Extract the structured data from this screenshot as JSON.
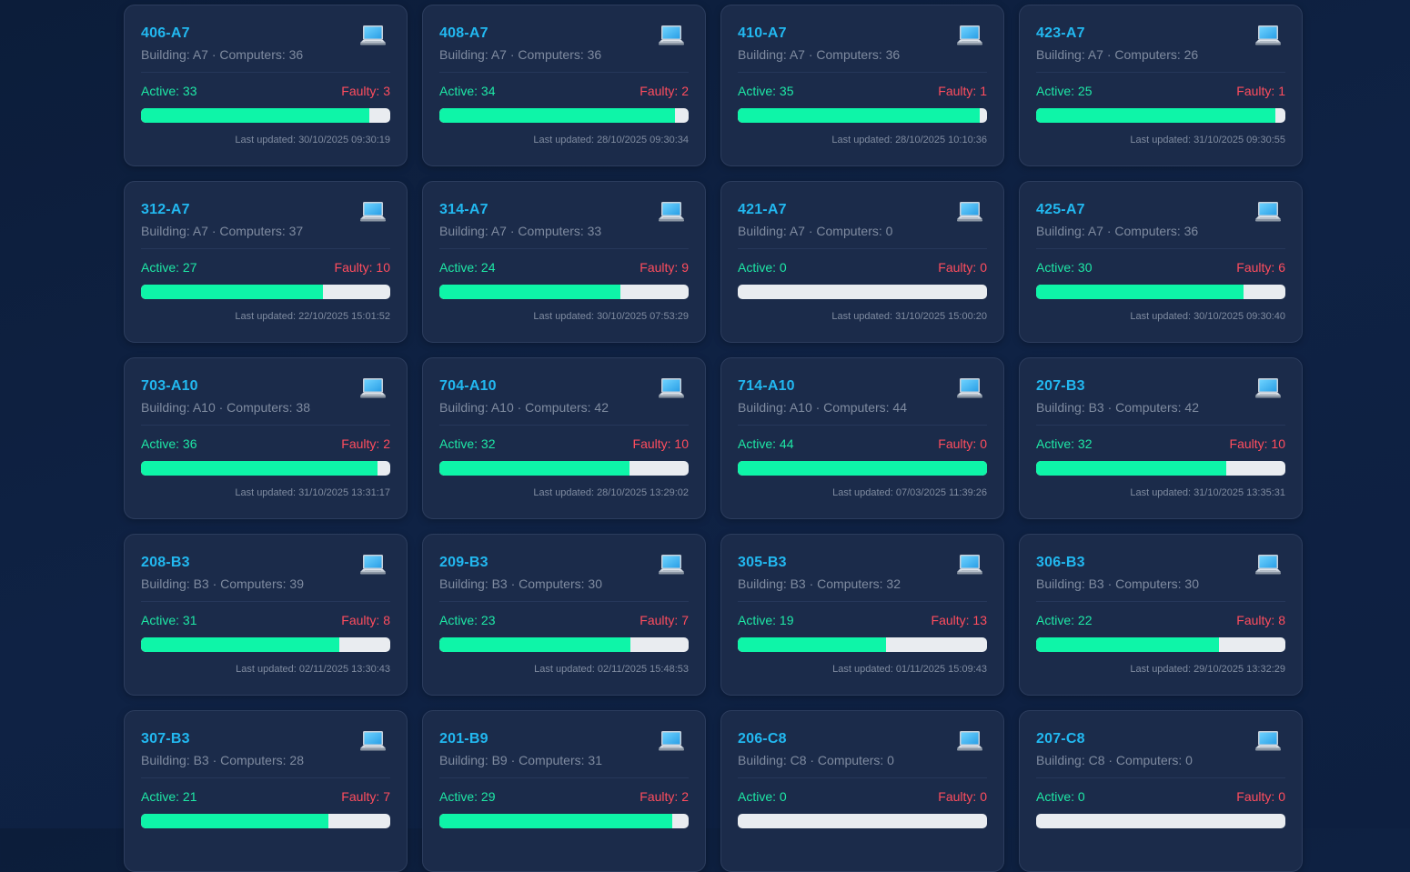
{
  "labels": {
    "building": "Building:",
    "computers": "Computers:",
    "active": "Active:",
    "faulty": "Faulty:",
    "updated": "Last updated:"
  },
  "colors": {
    "room": "#22b8f0",
    "active": "#1ee8a6",
    "faulty": "#ff4d5e",
    "bar_fill": "#0ef5a8",
    "bar_track": "#e9ecf0",
    "card_bg": "#1b2b4a"
  },
  "rooms": [
    {
      "name": "406-A7",
      "building": "A7",
      "computers": 36,
      "active": 33,
      "faulty": 3,
      "updated": "30/10/2025 09:30:19",
      "icon": "laptop-icon"
    },
    {
      "name": "408-A7",
      "building": "A7",
      "computers": 36,
      "active": 34,
      "faulty": 2,
      "updated": "28/10/2025 09:30:34",
      "icon": "laptop-icon"
    },
    {
      "name": "410-A7",
      "building": "A7",
      "computers": 36,
      "active": 35,
      "faulty": 1,
      "updated": "28/10/2025 10:10:36",
      "icon": "laptop-icon"
    },
    {
      "name": "423-A7",
      "building": "A7",
      "computers": 26,
      "active": 25,
      "faulty": 1,
      "updated": "31/10/2025 09:30:55",
      "icon": "laptop-icon"
    },
    {
      "name": "312-A7",
      "building": "A7",
      "computers": 37,
      "active": 27,
      "faulty": 10,
      "updated": "22/10/2025 15:01:52",
      "icon": "laptop-icon"
    },
    {
      "name": "314-A7",
      "building": "A7",
      "computers": 33,
      "active": 24,
      "faulty": 9,
      "updated": "30/10/2025 07:53:29",
      "icon": "laptop-icon"
    },
    {
      "name": "421-A7",
      "building": "A7",
      "computers": 0,
      "active": 0,
      "faulty": 0,
      "updated": "31/10/2025 15:00:20",
      "icon": "laptop-icon"
    },
    {
      "name": "425-A7",
      "building": "A7",
      "computers": 36,
      "active": 30,
      "faulty": 6,
      "updated": "30/10/2025 09:30:40",
      "icon": "laptop-icon"
    },
    {
      "name": "703-A10",
      "building": "A10",
      "computers": 38,
      "active": 36,
      "faulty": 2,
      "updated": "31/10/2025 13:31:17",
      "icon": "laptop-icon"
    },
    {
      "name": "704-A10",
      "building": "A10",
      "computers": 42,
      "active": 32,
      "faulty": 10,
      "updated": "28/10/2025 13:29:02",
      "icon": "laptop-icon"
    },
    {
      "name": "714-A10",
      "building": "A10",
      "computers": 44,
      "active": 44,
      "faulty": 0,
      "updated": "07/03/2025 11:39:26",
      "icon": "laptop-icon"
    },
    {
      "name": "207-B3",
      "building": "B3",
      "computers": 42,
      "active": 32,
      "faulty": 10,
      "updated": "31/10/2025 13:35:31",
      "icon": "laptop-icon"
    },
    {
      "name": "208-B3",
      "building": "B3",
      "computers": 39,
      "active": 31,
      "faulty": 8,
      "updated": "02/11/2025 13:30:43",
      "icon": "laptop-icon"
    },
    {
      "name": "209-B3",
      "building": "B3",
      "computers": 30,
      "active": 23,
      "faulty": 7,
      "updated": "02/11/2025 15:48:53",
      "icon": "laptop-icon"
    },
    {
      "name": "305-B3",
      "building": "B3",
      "computers": 32,
      "active": 19,
      "faulty": 13,
      "updated": "01/11/2025 15:09:43",
      "icon": "laptop-icon"
    },
    {
      "name": "306-B3",
      "building": "B3",
      "computers": 30,
      "active": 22,
      "faulty": 8,
      "updated": "29/10/2025 13:32:29",
      "icon": "laptop-icon"
    },
    {
      "name": "307-B3",
      "building": "B3",
      "computers": 28,
      "active": 21,
      "faulty": 7,
      "updated": "",
      "icon": "laptop-icon"
    },
    {
      "name": "201-B9",
      "building": "B9",
      "computers": 31,
      "active": 29,
      "faulty": 2,
      "updated": "",
      "icon": "laptop-icon"
    },
    {
      "name": "206-C8",
      "building": "C8",
      "computers": 0,
      "active": 0,
      "faulty": 0,
      "updated": "",
      "icon": "laptop-icon"
    },
    {
      "name": "207-C8",
      "building": "C8",
      "computers": 0,
      "active": 0,
      "faulty": 0,
      "updated": "",
      "icon": "laptop-icon"
    }
  ]
}
